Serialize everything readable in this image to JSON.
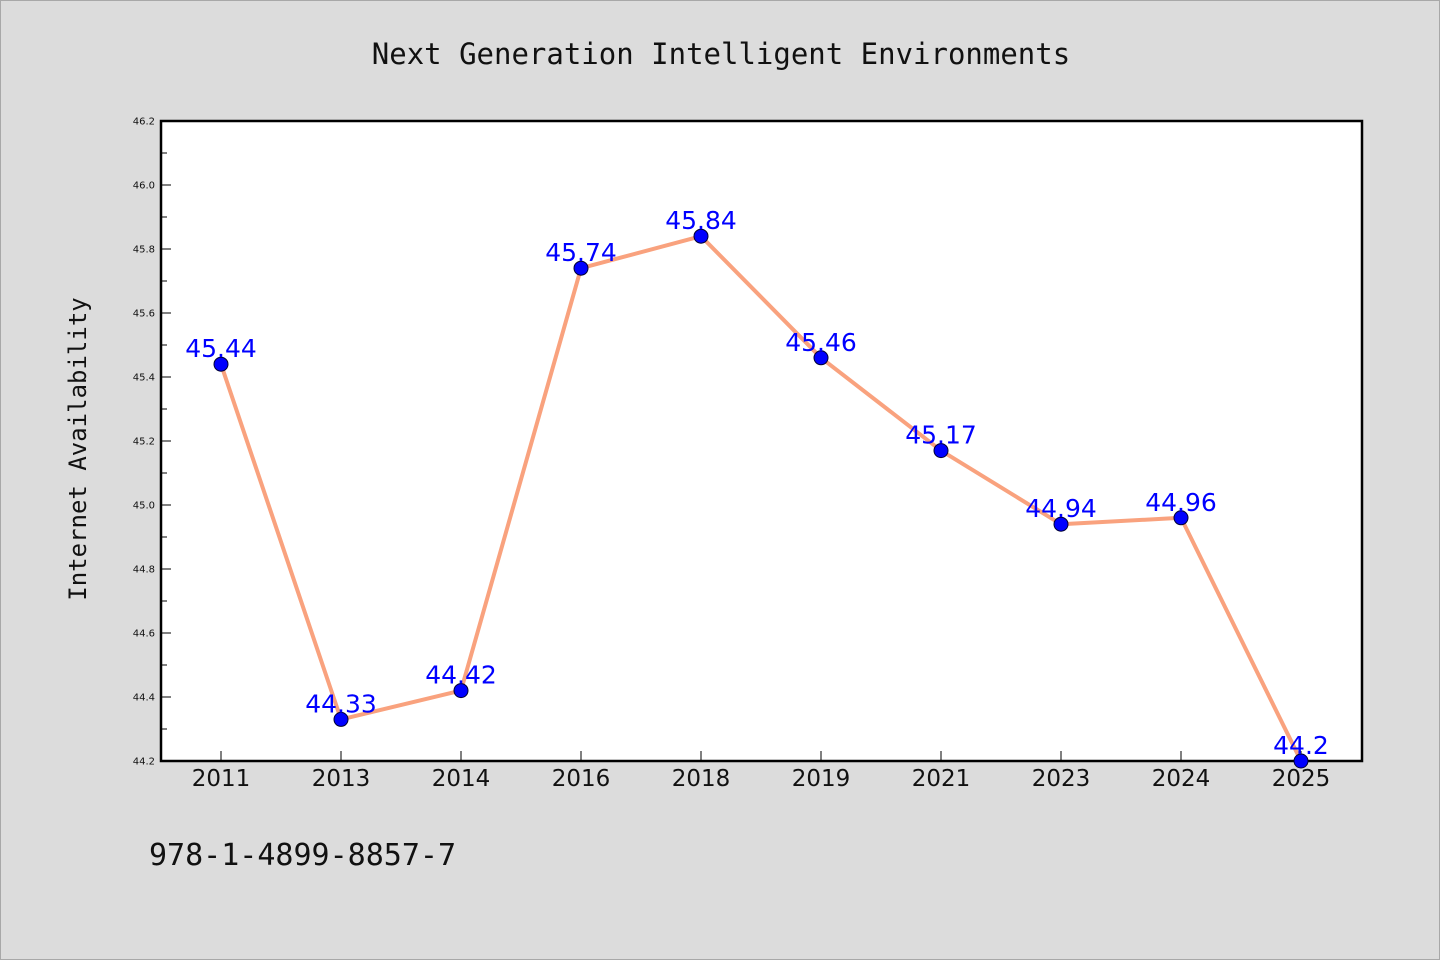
{
  "chart_data": {
    "type": "line",
    "title": "Next Generation Intelligent Environments",
    "xlabel": "",
    "ylabel": "Internet Availability",
    "categories": [
      "2011",
      "2013",
      "2014",
      "2016",
      "2018",
      "2019",
      "2021",
      "2023",
      "2024",
      "2025"
    ],
    "series": [
      {
        "values": [
          45.44,
          44.33,
          44.42,
          45.74,
          45.84,
          45.46,
          45.17,
          44.94,
          44.96,
          44.2
        ],
        "data_labels": [
          "45.44",
          "44.33",
          "44.42",
          "45.74",
          "45.84",
          "45.46",
          "45.17",
          "44.94",
          "44.96",
          "44.2"
        ],
        "line_color": "#f9a27e",
        "marker_color": "#0000ff"
      }
    ],
    "ylim": [
      44.2,
      46.2
    ],
    "yticks": [
      "44.2",
      "44.4",
      "44.6",
      "44.8",
      "45.0",
      "45.2",
      "45.4",
      "45.6",
      "45.8",
      "46.0",
      "46.2"
    ],
    "grid": false,
    "legend": "none"
  },
  "footer": {
    "text": "978-1-4899-8857-7"
  },
  "colors": {
    "background": "#dcdcdc",
    "plot_background": "#ffffff",
    "axis": "#000000"
  }
}
